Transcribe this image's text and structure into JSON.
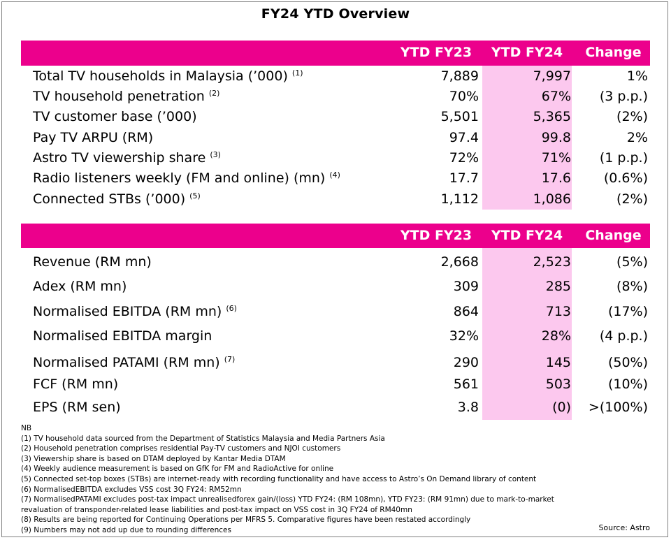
{
  "title": "FY24 YTD Overview",
  "colors": {
    "accent": "#ec008c",
    "highlight": "#fcc8ee"
  },
  "table1": {
    "headers": [
      "YTD FY23",
      "YTD FY24",
      "Change"
    ],
    "rows": [
      {
        "label": "Total TV households in Malaysia (’000)",
        "note": "(1)",
        "fy23": "7,889",
        "fy24": "7,997",
        "change": "1%"
      },
      {
        "label": "TV household penetration",
        "note": "(2)",
        "fy23": "70%",
        "fy24": "67%",
        "change": "(3 p.p.)"
      },
      {
        "label": "TV customer base (’000)",
        "note": "",
        "fy23": "5,501",
        "fy24": "5,365",
        "change": "(2%)"
      },
      {
        "label": "Pay TV ARPU (RM)",
        "note": "",
        "fy23": "97.4",
        "fy24": "99.8",
        "change": "2%"
      },
      {
        "label": "Astro TV viewership share",
        "note": "(3)",
        "fy23": "72%",
        "fy24": "71%",
        "change": "(1 p.p.)"
      },
      {
        "label": "Radio listeners weekly (FM and online) (mn)",
        "note": "(4)",
        "fy23": "17.7",
        "fy24": "17.6",
        "change": "(0.6%)"
      },
      {
        "label": "Connected STBs (’000)",
        "note": "(5)",
        "fy23": "1,112",
        "fy24": "1,086",
        "change": "(2%)"
      }
    ]
  },
  "table2": {
    "headers": [
      "YTD FY23",
      "YTD FY24",
      "Change"
    ],
    "rows": [
      {
        "label": "Revenue (RM mn)",
        "note": "",
        "fy23": "2,668",
        "fy24": "2,523",
        "change": "(5%)"
      },
      {
        "label": "Adex (RM mn)",
        "note": "",
        "fy23": "309",
        "fy24": "285",
        "change": "(8%)"
      },
      {
        "label": "Normalised EBITDA (RM mn)",
        "note": "(6)",
        "fy23": "864",
        "fy24": "713",
        "change": "(17%)"
      },
      {
        "label": "Normalised EBITDA margin",
        "note": "",
        "fy23": "32%",
        "fy24": "28%",
        "change": "(4 p.p.)"
      },
      {
        "label": "Normalised PATAMI (RM mn)",
        "note": "(7)",
        "fy23": "290",
        "fy24": "145",
        "change": "(50%)"
      },
      {
        "label": "FCF (RM mn)",
        "note": "",
        "fy23": "561",
        "fy24": "503",
        "change": "(10%)"
      },
      {
        "label": "EPS (RM sen)",
        "note": "",
        "fy23": "3.8",
        "fy24": "(0)",
        "change": ">(100%)"
      }
    ]
  },
  "notes": [
    "NB",
    "(1) TV household data sourced from the Department of Statistics Malaysia and Media Partners Asia",
    "(2) Household penetration comprises residential Pay-TV customers and NJOI customers",
    "(3) Viewership share is based on DTAM deployed by Kantar Media DTAM",
    "(4) Weekly audience measurement is based on GfK for FM and RadioActive for online",
    "(5) Connected set-top boxes (STBs) are internet-ready with recording functionality and have access to Astro’s On Demand library of content",
    "(6) NormalisedEBITDA excludes VSS cost 3Q FY24: RM52mn",
    "(7) NormalisedPATAMI excludes post-tax impact unrealisedforex gain/(loss) YTD FY24: (RM 108mn), YTD FY23: (RM 91mn) due to mark-to-market",
    "revaluation of transponder-related lease liabilities and post-tax impact on VSS cost in 3Q FY24 of RM40mn",
    "(8) Results are being reported for Continuing Operations per MFRS 5. Comparative figures have been restated accordingly",
    "(9) Numbers may not add up due to rounding differences"
  ],
  "source": "Source: Astro"
}
